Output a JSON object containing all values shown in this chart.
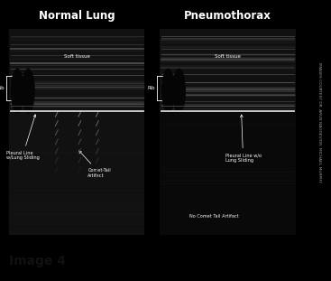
{
  "title_left": "Normal Lung",
  "title_right": "Pneumothorax",
  "caption": "Image 4",
  "credit_text": "IMAGES COURTESY DR. ARUN NAGDEV/DR. MICHAEL MURPHY",
  "bg_color": "#000000",
  "label_left_1": "Soft tissue",
  "label_left_3": "Pleural Line\nw/Lung Sliding",
  "label_left_4": "Comet-Tail\nArtifact",
  "label_right_1": "Soft tissue",
  "label_right_3": "Pleural Line w/o\nLung Sliding",
  "label_right_4": "No Comet Tail Artifact",
  "figsize": [
    3.67,
    3.11
  ],
  "dpi": 100
}
